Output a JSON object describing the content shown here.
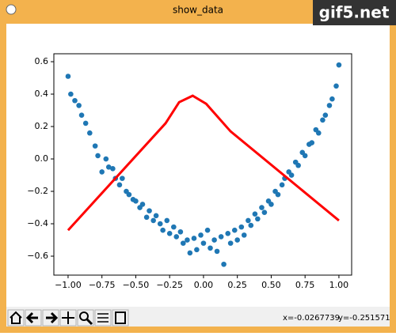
{
  "window": {
    "title": "show_data",
    "watermark": "gif5.net",
    "status": {
      "x": "x=-0.0267739",
      "y": "y=-0.251571"
    }
  },
  "chart_data": {
    "type": "scatter",
    "xlim": [
      -1.105,
      1.094
    ],
    "ylim": [
      -0.717,
      0.649
    ],
    "xticks": [
      {
        "value": -1,
        "label": "−1.00"
      },
      {
        "value": -0.75,
        "label": "−0.75"
      },
      {
        "value": -0.5,
        "label": "−0.50"
      },
      {
        "value": -0.25,
        "label": "−0.25"
      },
      {
        "value": 0,
        "label": "0.00"
      },
      {
        "value": 0.25,
        "label": "0.25"
      },
      {
        "value": 0.5,
        "label": "0.50"
      },
      {
        "value": 0.75,
        "label": "0.75"
      },
      {
        "value": 1,
        "label": "1.00"
      }
    ],
    "yticks": [
      {
        "value": -0.6,
        "label": "−0.6"
      },
      {
        "value": -0.4,
        "label": "−0.4"
      },
      {
        "value": -0.2,
        "label": "−0.2"
      },
      {
        "value": 0,
        "label": "0.0"
      },
      0.2,
      0.4,
      0.6
    ],
    "grid": false,
    "series": [
      {
        "type": "scatter",
        "color": "#1f77b4",
        "x": [
          -1.0,
          -0.98,
          -0.95,
          -0.92,
          -0.9,
          -0.87,
          -0.84,
          -0.8,
          -0.78,
          -0.75,
          -0.72,
          -0.7,
          -0.67,
          -0.65,
          -0.62,
          -0.6,
          -0.57,
          -0.55,
          -0.52,
          -0.5,
          -0.47,
          -0.45,
          -0.42,
          -0.4,
          -0.37,
          -0.35,
          -0.32,
          -0.3,
          -0.27,
          -0.25,
          -0.22,
          -0.2,
          -0.17,
          -0.15,
          -0.12,
          -0.1,
          -0.07,
          -0.05,
          -0.02,
          0.0,
          0.03,
          0.05,
          0.08,
          0.1,
          0.13,
          0.15,
          0.18,
          0.2,
          0.23,
          0.25,
          0.28,
          0.3,
          0.33,
          0.35,
          0.38,
          0.4,
          0.43,
          0.45,
          0.48,
          0.5,
          0.53,
          0.55,
          0.58,
          0.6,
          0.63,
          0.65,
          0.68,
          0.7,
          0.73,
          0.75,
          0.78,
          0.8,
          0.83,
          0.85,
          0.88,
          0.9,
          0.93,
          0.95,
          0.98,
          1.0
        ],
        "values": [
          0.51,
          0.4,
          0.36,
          0.33,
          0.27,
          0.22,
          0.16,
          0.08,
          0.02,
          -0.08,
          0.0,
          -0.05,
          -0.06,
          -0.12,
          -0.16,
          -0.12,
          -0.2,
          -0.22,
          -0.25,
          -0.26,
          -0.3,
          -0.28,
          -0.36,
          -0.32,
          -0.38,
          -0.35,
          -0.4,
          -0.44,
          -0.38,
          -0.46,
          -0.42,
          -0.48,
          -0.45,
          -0.52,
          -0.5,
          -0.58,
          -0.49,
          -0.56,
          -0.47,
          -0.52,
          -0.44,
          -0.55,
          -0.5,
          -0.57,
          -0.48,
          -0.65,
          -0.46,
          -0.52,
          -0.44,
          -0.5,
          -0.42,
          -0.47,
          -0.38,
          -0.41,
          -0.34,
          -0.37,
          -0.3,
          -0.33,
          -0.26,
          -0.28,
          -0.2,
          -0.22,
          -0.16,
          -0.12,
          -0.08,
          -0.1,
          -0.02,
          -0.04,
          0.04,
          0.02,
          0.09,
          0.1,
          0.18,
          0.16,
          0.24,
          0.27,
          0.33,
          0.37,
          0.45,
          0.58
        ]
      },
      {
        "type": "line",
        "color": "#ff0000",
        "x": [
          -1.0,
          -0.28,
          -0.18,
          -0.08,
          0.02,
          0.2,
          1.0
        ],
        "values": [
          -0.44,
          0.22,
          0.35,
          0.39,
          0.34,
          0.17,
          -0.38
        ]
      }
    ]
  }
}
